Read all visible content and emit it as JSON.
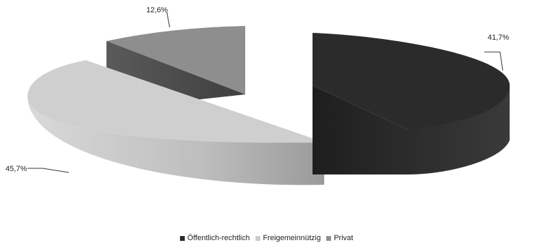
{
  "chart_data": {
    "type": "pie",
    "style": "3d-exploded",
    "title": "",
    "categories": [
      "Öffentlich-rechtlich",
      "Freigemeinnützig",
      "Privat"
    ],
    "values": [
      41.7,
      45.7,
      12.6
    ],
    "labels": [
      "41,7%",
      "45,7%",
      "12,6%"
    ],
    "colors": [
      "#2b2b2b",
      "#cccccc",
      "#8e8e8e"
    ],
    "legend_position": "bottom"
  }
}
